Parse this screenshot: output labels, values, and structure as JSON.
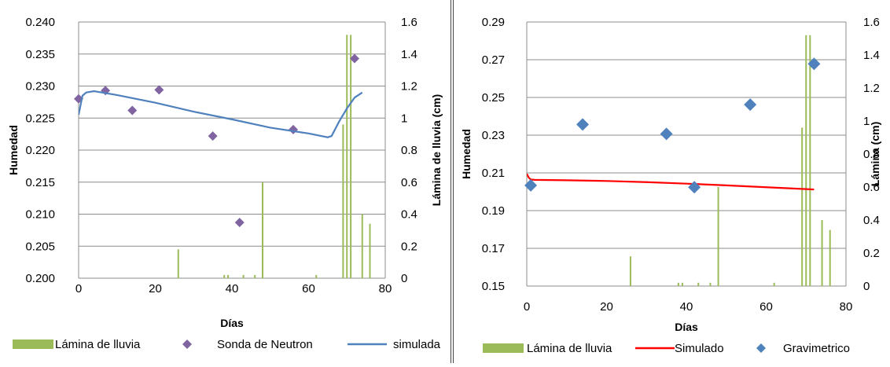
{
  "charts": [
    {
      "type": "bar+scatter+line",
      "xlabel": "Días",
      "ylabel": "Humedad",
      "y2label": "Lámina de lluvia (cm)",
      "xlim": [
        0,
        80
      ],
      "ylim": [
        0.2,
        0.24
      ],
      "y2lim": [
        0,
        1.6
      ],
      "x_ticks": [
        "0",
        "20",
        "40",
        "60",
        "80"
      ],
      "y_ticks": [
        "0.200",
        "0.205",
        "0.210",
        "0.215",
        "0.220",
        "0.225",
        "0.230",
        "0.235",
        "0.240"
      ],
      "y2_ticks": [
        "0",
        "0.2",
        "0.4",
        "0.6",
        "0.8",
        "1",
        "1.2",
        "1.4",
        "1.6"
      ],
      "grid": true,
      "legend_placement": "bottom",
      "colors": {
        "bar": "#9bbb59",
        "points": "#8064a2",
        "line": "#4f81bd"
      },
      "bars": {
        "name": "Lámina de lluvia",
        "x": [
          26,
          38,
          39,
          43,
          46,
          48,
          62,
          69,
          70,
          71,
          74,
          76
        ],
        "values": [
          0.18,
          0.02,
          0.02,
          0.02,
          0.02,
          0.6,
          0.02,
          0.96,
          1.52,
          1.52,
          0.4,
          0.34
        ]
      },
      "points": {
        "name": "Sonda de Neutron",
        "x": [
          0,
          7,
          14,
          21,
          35,
          42,
          56,
          72
        ],
        "values": [
          0.228,
          0.2293,
          0.2262,
          0.2294,
          0.2222,
          0.2087,
          0.2232,
          0.2343
        ]
      },
      "line": {
        "name": "simulada",
        "x": [
          0,
          1,
          2,
          4,
          10,
          20,
          30,
          40,
          50,
          60,
          65,
          66,
          68,
          70,
          72,
          74
        ],
        "values": [
          0.2255,
          0.2285,
          0.229,
          0.2292,
          0.2286,
          0.2274,
          0.226,
          0.2248,
          0.2235,
          0.2226,
          0.222,
          0.2222,
          0.2245,
          0.2265,
          0.2282,
          0.229
        ]
      }
    },
    {
      "type": "bar+scatter+line",
      "xlabel": "Días",
      "ylabel": "Humedad",
      "y2label": "Lámina (cm)",
      "xlim": [
        0,
        80
      ],
      "ylim": [
        0.15,
        0.29
      ],
      "y2lim": [
        0,
        1.6
      ],
      "x_ticks": [
        "0",
        "20",
        "40",
        "60",
        "80"
      ],
      "y_ticks": [
        "0.15",
        "0.17",
        "0.19",
        "0.21",
        "0.23",
        "0.25",
        "0.27",
        "0.29"
      ],
      "y2_ticks": [
        "0",
        "0.2",
        "0.4",
        "0.6",
        "0.8",
        "1",
        "1.2",
        "1.4",
        "1.6"
      ],
      "grid": true,
      "legend_placement": "bottom",
      "colors": {
        "bar": "#9bbb59",
        "points": "#4f81bd",
        "line": "#ff0000"
      },
      "bars": {
        "name": "Lámina de lluvia",
        "x": [
          26,
          38,
          39,
          43,
          46,
          48,
          62,
          69,
          70,
          71,
          74,
          76
        ],
        "values": [
          0.18,
          0.02,
          0.02,
          0.02,
          0.02,
          0.6,
          0.02,
          0.96,
          1.52,
          1.52,
          0.4,
          0.34
        ]
      },
      "line": {
        "name": "Simulado",
        "x": [
          0,
          0.5,
          1,
          2,
          10,
          20,
          30,
          40,
          50,
          60,
          70,
          72
        ],
        "values": [
          0.2095,
          0.2075,
          0.2065,
          0.2063,
          0.2061,
          0.2057,
          0.2051,
          0.2043,
          0.2034,
          0.2024,
          0.2014,
          0.2012
        ]
      },
      "points": {
        "name": "Gravimetrico",
        "x": [
          1,
          14,
          35,
          42,
          56,
          72
        ],
        "values": [
          0.2034,
          0.2357,
          0.2307,
          0.2024,
          0.2462,
          0.2678
        ]
      }
    }
  ]
}
